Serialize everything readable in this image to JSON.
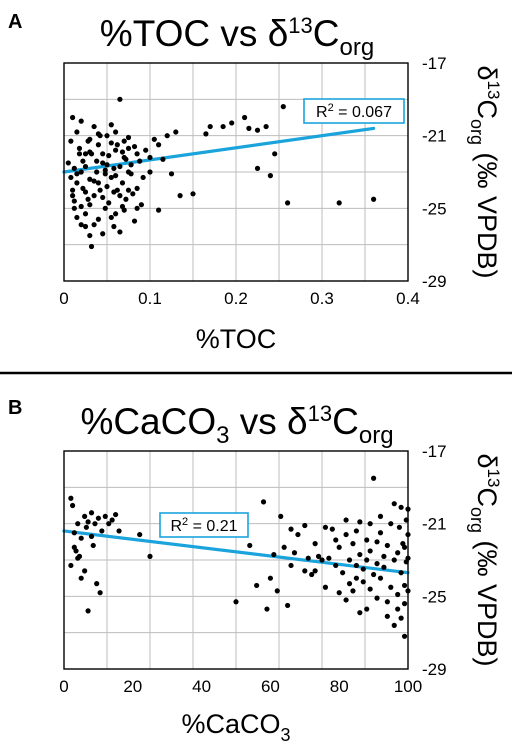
{
  "chart_data": [
    {
      "type": "scatter",
      "panel_letter": "A",
      "title": "%TOC vs δ13Corg",
      "title_parts": {
        "main": "%TOC vs δ",
        "sup": "13",
        "base": "C",
        "sub": "org"
      },
      "xlabel": "%TOC",
      "xlabel_parts": {
        "main": "%TOC",
        "sub": ""
      },
      "ylabel": "δ13Corg (‰ VPDB)",
      "ylabel_parts": {
        "delta": "δ",
        "sup": "13",
        "base": "C",
        "sub": "org",
        "rest": " (‰ VPDB)"
      },
      "xlim": [
        0,
        0.4
      ],
      "ylim": [
        -29,
        -17
      ],
      "x_ticks": [
        "0",
        "0.1",
        "0.2",
        "0.3",
        "0.4"
      ],
      "y_ticks": [
        "-17",
        "-21",
        "-25",
        "-29"
      ],
      "grid": true,
      "regression": {
        "label": "R2 = 0.067",
        "label_base": "R",
        "label_sup": "2",
        "label_rest": " = 0.067",
        "x": [
          0,
          0.36
        ],
        "y": [
          -23.0,
          -20.6
        ],
        "color": "#1ba3dc"
      },
      "points_color": "#000000",
      "points": [
        [
          0.01,
          -20.0
        ],
        [
          0.015,
          -20.8
        ],
        [
          0.02,
          -20.2
        ],
        [
          0.02,
          -23.0
        ],
        [
          0.025,
          -22.0
        ],
        [
          0.03,
          -21.2
        ],
        [
          0.035,
          -20.5
        ],
        [
          0.04,
          -21.5
        ],
        [
          0.045,
          -22.5
        ],
        [
          0.05,
          -21.0
        ],
        [
          0.055,
          -20.4
        ],
        [
          0.06,
          -21.8
        ],
        [
          0.065,
          -19.0
        ],
        [
          0.07,
          -22.2
        ],
        [
          0.075,
          -21.1
        ],
        [
          0.005,
          -22.5
        ],
        [
          0.008,
          -23.3
        ],
        [
          0.01,
          -24.0
        ],
        [
          0.012,
          -24.6
        ],
        [
          0.015,
          -23.6
        ],
        [
          0.018,
          -22.0
        ],
        [
          0.02,
          -24.9
        ],
        [
          0.022,
          -23.9
        ],
        [
          0.025,
          -25.3
        ],
        [
          0.025,
          -26.0
        ],
        [
          0.028,
          -24.5
        ],
        [
          0.03,
          -23.4
        ],
        [
          0.03,
          -26.5
        ],
        [
          0.032,
          -27.1
        ],
        [
          0.035,
          -24.3
        ],
        [
          0.038,
          -23.0
        ],
        [
          0.04,
          -25.6
        ],
        [
          0.042,
          -24.0
        ],
        [
          0.045,
          -22.0
        ],
        [
          0.048,
          -25.0
        ],
        [
          0.05,
          -23.8
        ],
        [
          0.052,
          -24.7
        ],
        [
          0.055,
          -23.3
        ],
        [
          0.058,
          -26.0
        ],
        [
          0.06,
          -25.3
        ],
        [
          0.062,
          -24.0
        ],
        [
          0.065,
          -26.3
        ],
        [
          0.068,
          -23.6
        ],
        [
          0.07,
          -25.1
        ],
        [
          0.072,
          -24.5
        ],
        [
          0.075,
          -23.0
        ],
        [
          0.078,
          -22.6
        ],
        [
          0.08,
          -24.2
        ],
        [
          0.082,
          -25.7
        ],
        [
          0.085,
          -23.9
        ],
        [
          0.088,
          -22.4
        ],
        [
          0.09,
          -24.8
        ],
        [
          0.095,
          -21.8
        ],
        [
          0.1,
          -22.2
        ],
        [
          0.1,
          -23.0
        ],
        [
          0.008,
          -21.3
        ],
        [
          0.012,
          -22.8
        ],
        [
          0.018,
          -21.7
        ],
        [
          0.022,
          -22.4
        ],
        [
          0.028,
          -21.3
        ],
        [
          0.032,
          -22.0
        ],
        [
          0.038,
          -22.4
        ],
        [
          0.042,
          -21.0
        ],
        [
          0.048,
          -22.9
        ],
        [
          0.052,
          -22.1
        ],
        [
          0.058,
          -22.8
        ],
        [
          0.062,
          -21.5
        ],
        [
          0.068,
          -21.9
        ],
        [
          0.072,
          -22.3
        ],
        [
          0.078,
          -23.1
        ],
        [
          0.082,
          -21.6
        ],
        [
          0.015,
          -25.5
        ],
        [
          0.035,
          -25.9
        ],
        [
          0.045,
          -26.4
        ],
        [
          0.055,
          -25.5
        ],
        [
          0.065,
          -24.3
        ],
        [
          0.085,
          -25.0
        ],
        [
          0.025,
          -24.1
        ],
        [
          0.04,
          -23.6
        ],
        [
          0.06,
          -23.2
        ],
        [
          0.11,
          -21.5
        ],
        [
          0.115,
          -22.3
        ],
        [
          0.12,
          -21.0
        ],
        [
          0.125,
          -23.1
        ],
        [
          0.13,
          -20.8
        ],
        [
          0.11,
          -25.1
        ],
        [
          0.135,
          -24.3
        ],
        [
          0.15,
          -24.2
        ],
        [
          0.165,
          -20.9
        ],
        [
          0.17,
          -20.5
        ],
        [
          0.185,
          -20.5
        ],
        [
          0.195,
          -20.3
        ],
        [
          0.21,
          -20.0
        ],
        [
          0.215,
          -20.6
        ],
        [
          0.225,
          -20.7
        ],
        [
          0.225,
          -22.8
        ],
        [
          0.235,
          -20.5
        ],
        [
          0.24,
          -23.2
        ],
        [
          0.255,
          -19.4
        ],
        [
          0.245,
          -22.0
        ],
        [
          0.26,
          -24.7
        ],
        [
          0.32,
          -24.7
        ],
        [
          0.36,
          -24.5
        ],
        [
          0.015,
          -23.1
        ],
        [
          0.025,
          -22.7
        ],
        [
          0.03,
          -21.9
        ],
        [
          0.035,
          -23.5
        ],
        [
          0.045,
          -24.4
        ],
        [
          0.055,
          -21.4
        ],
        [
          0.065,
          -22.7
        ],
        [
          0.075,
          -24.0
        ],
        [
          0.085,
          -22.0
        ],
        [
          0.01,
          -24.3
        ],
        [
          0.02,
          -25.9
        ],
        [
          0.05,
          -22.6
        ],
        [
          0.04,
          -20.9
        ],
        [
          0.06,
          -20.8
        ],
        [
          0.07,
          -21.3
        ],
        [
          0.03,
          -24.8
        ],
        [
          0.012,
          -25.0
        ],
        [
          0.048,
          -23.1
        ],
        [
          0.058,
          -24.1
        ],
        [
          0.068,
          -24.9
        ],
        [
          0.075,
          -21.7
        ],
        [
          0.092,
          -23.3
        ],
        [
          0.105,
          -21.2
        ]
      ]
    },
    {
      "type": "scatter",
      "panel_letter": "B",
      "title": "%CaCO3 vs δ13Corg",
      "title_parts": {
        "main": "%CaCO",
        "mainsub": "3",
        "mid": " vs δ",
        "sup": "13",
        "base": "C",
        "sub": "org"
      },
      "xlabel": "%CaCO3",
      "xlabel_parts": {
        "main": "%CaCO",
        "sub": "3"
      },
      "ylabel": "δ13Corg (‰ VPDB)",
      "ylabel_parts": {
        "delta": "δ",
        "sup": "13",
        "base": "C",
        "sub": "org",
        "rest": " (‰ VPDB)"
      },
      "xlim": [
        0,
        100
      ],
      "ylim": [
        -29,
        -17
      ],
      "x_ticks": [
        "0",
        "20",
        "40",
        "60",
        "80",
        "100"
      ],
      "y_ticks": [
        "-17",
        "-21",
        "-25",
        "-29"
      ],
      "grid": true,
      "regression": {
        "label": "R2 = 0.21",
        "label_base": "R",
        "label_sup": "2",
        "label_rest": " = 0.21",
        "x": [
          0,
          100
        ],
        "y": [
          -21.4,
          -23.7
        ],
        "color": "#1ba3dc"
      },
      "points_color": "#000000",
      "points": [
        [
          2,
          -19.6
        ],
        [
          2.5,
          -20.0
        ],
        [
          3,
          -21.5
        ],
        [
          3.5,
          -22.5
        ],
        [
          4,
          -21.0
        ],
        [
          4.5,
          -22.8
        ],
        [
          5,
          -21.8
        ],
        [
          6,
          -20.6
        ],
        [
          6.5,
          -21.2
        ],
        [
          7,
          -25.8
        ],
        [
          8,
          -20.4
        ],
        [
          8.5,
          -22.2
        ],
        [
          9,
          -21.0
        ],
        [
          9.5,
          -24.3
        ],
        [
          10,
          -20.7
        ],
        [
          10.5,
          -24.8
        ],
        [
          11,
          -21.4
        ],
        [
          12,
          -20.6
        ],
        [
          13,
          -21.0
        ],
        [
          14,
          -20.8
        ],
        [
          15,
          -20.5
        ],
        [
          16,
          -21.4
        ],
        [
          22,
          -21.6
        ],
        [
          25,
          -22.8
        ],
        [
          2,
          -23.3
        ],
        [
          3,
          -22.3
        ],
        [
          4,
          -22.9
        ],
        [
          5,
          -24.0
        ],
        [
          6,
          -23.6
        ],
        [
          7,
          -20.9
        ],
        [
          8,
          -21.7
        ],
        [
          50,
          -25.3
        ],
        [
          54,
          -22.2
        ],
        [
          56,
          -24.4
        ],
        [
          58,
          -19.8
        ],
        [
          59,
          -25.7
        ],
        [
          60,
          -24.0
        ],
        [
          61,
          -22.7
        ],
        [
          62,
          -24.7
        ],
        [
          63,
          -20.6
        ],
        [
          64,
          -22.3
        ],
        [
          65,
          -25.5
        ],
        [
          66,
          -21.3
        ],
        [
          67,
          -22.6
        ],
        [
          70,
          -21.1
        ],
        [
          71,
          -22.9
        ],
        [
          72,
          -23.8
        ],
        [
          73,
          -23.6
        ],
        [
          74,
          -22.8
        ],
        [
          75,
          -23.0
        ],
        [
          76,
          -24.5
        ],
        [
          77,
          -22.9
        ],
        [
          78,
          -21.3
        ],
        [
          79,
          -23.3
        ],
        [
          80,
          -22.3
        ],
        [
          80,
          -24.8
        ],
        [
          81,
          -23.7
        ],
        [
          82,
          -21.6
        ],
        [
          82,
          -25.2
        ],
        [
          83,
          -23.0
        ],
        [
          83,
          -24.3
        ],
        [
          84,
          -22.1
        ],
        [
          84,
          -24.7
        ],
        [
          85,
          -21.4
        ],
        [
          85,
          -23.3
        ],
        [
          86,
          -25.9
        ],
        [
          86,
          -22.7
        ],
        [
          87,
          -24.2
        ],
        [
          87,
          -23.5
        ],
        [
          88,
          -21.9
        ],
        [
          88,
          -25.7
        ],
        [
          89,
          -22.5
        ],
        [
          89,
          -24.6
        ],
        [
          90,
          -18.5
        ],
        [
          90,
          -23.8
        ],
        [
          91,
          -22.0
        ],
        [
          91,
          -25.1
        ],
        [
          92,
          -21.5
        ],
        [
          92,
          -24.0
        ],
        [
          93,
          -22.8
        ],
        [
          93,
          -23.4
        ],
        [
          94,
          -25.3
        ],
        [
          94,
          -22.2
        ],
        [
          95,
          -21.0
        ],
        [
          95,
          -24.5
        ],
        [
          96,
          -23.0
        ],
        [
          96,
          -26.6
        ],
        [
          97,
          -22.6
        ],
        [
          97,
          -24.9
        ],
        [
          97.5,
          -21.2
        ],
        [
          98,
          -23.7
        ],
        [
          98,
          -26.2
        ],
        [
          98.5,
          -22.1
        ],
        [
          99,
          -24.4
        ],
        [
          99,
          -25.4
        ],
        [
          99.5,
          -23.1
        ],
        [
          100,
          -21.6
        ],
        [
          100,
          -24.7
        ],
        [
          99,
          -27.2
        ],
        [
          98,
          -20.1
        ],
        [
          96,
          -19.9
        ],
        [
          92,
          -20.6
        ],
        [
          89,
          -21.0
        ],
        [
          86,
          -20.9
        ],
        [
          82,
          -20.8
        ],
        [
          79,
          -21.9
        ],
        [
          76,
          -21.2
        ],
        [
          73,
          -22.1
        ],
        [
          70,
          -23.6
        ],
        [
          68,
          -21.6
        ],
        [
          66,
          -23.3
        ],
        [
          100,
          -22.9
        ],
        [
          97,
          -25.7
        ],
        [
          94,
          -26.1
        ],
        [
          91,
          -23.2
        ],
        [
          88,
          -23.0
        ],
        [
          85,
          -24.0
        ],
        [
          100,
          -20.2
        ],
        [
          99,
          -22.3
        ],
        [
          99.5,
          -20.8
        ]
      ]
    }
  ]
}
